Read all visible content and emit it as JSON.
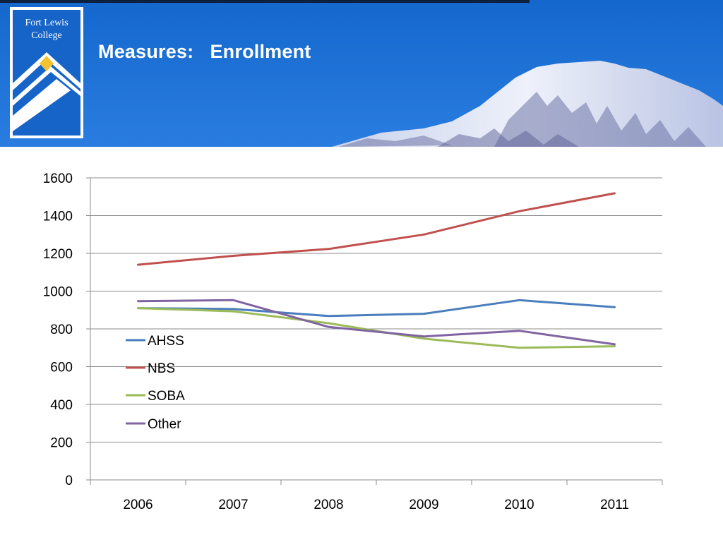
{
  "header": {
    "title": "Measures:   Enrollment",
    "logo_text": [
      "Fort Lewis",
      "College"
    ]
  },
  "colors": {
    "banner_blue": "#1a6fd1",
    "axis_gray": "#8c8c8c"
  },
  "chart_data": {
    "type": "line",
    "x": [
      "2006",
      "2007",
      "2008",
      "2009",
      "2010",
      "2011"
    ],
    "series": [
      {
        "name": "AHSS",
        "color": "#4a7dbd",
        "values": [
          910,
          905,
          868,
          880,
          952,
          915
        ]
      },
      {
        "name": "NBS",
        "color": "#c0504d",
        "values": [
          1140,
          1187,
          1223,
          1300,
          1423,
          1518
        ]
      },
      {
        "name": "SOBA",
        "color": "#9bbb59",
        "values": [
          910,
          893,
          830,
          748,
          700,
          708
        ]
      },
      {
        "name": "Other",
        "color": "#8064a2",
        "values": [
          947,
          952,
          810,
          760,
          790,
          718
        ]
      }
    ],
    "ylim": [
      0,
      1600
    ],
    "yticks": [
      "0",
      "200",
      "400",
      "600",
      "800",
      "1000",
      "1200",
      "1400",
      "1600"
    ],
    "grid": true,
    "legend": "left-center"
  }
}
